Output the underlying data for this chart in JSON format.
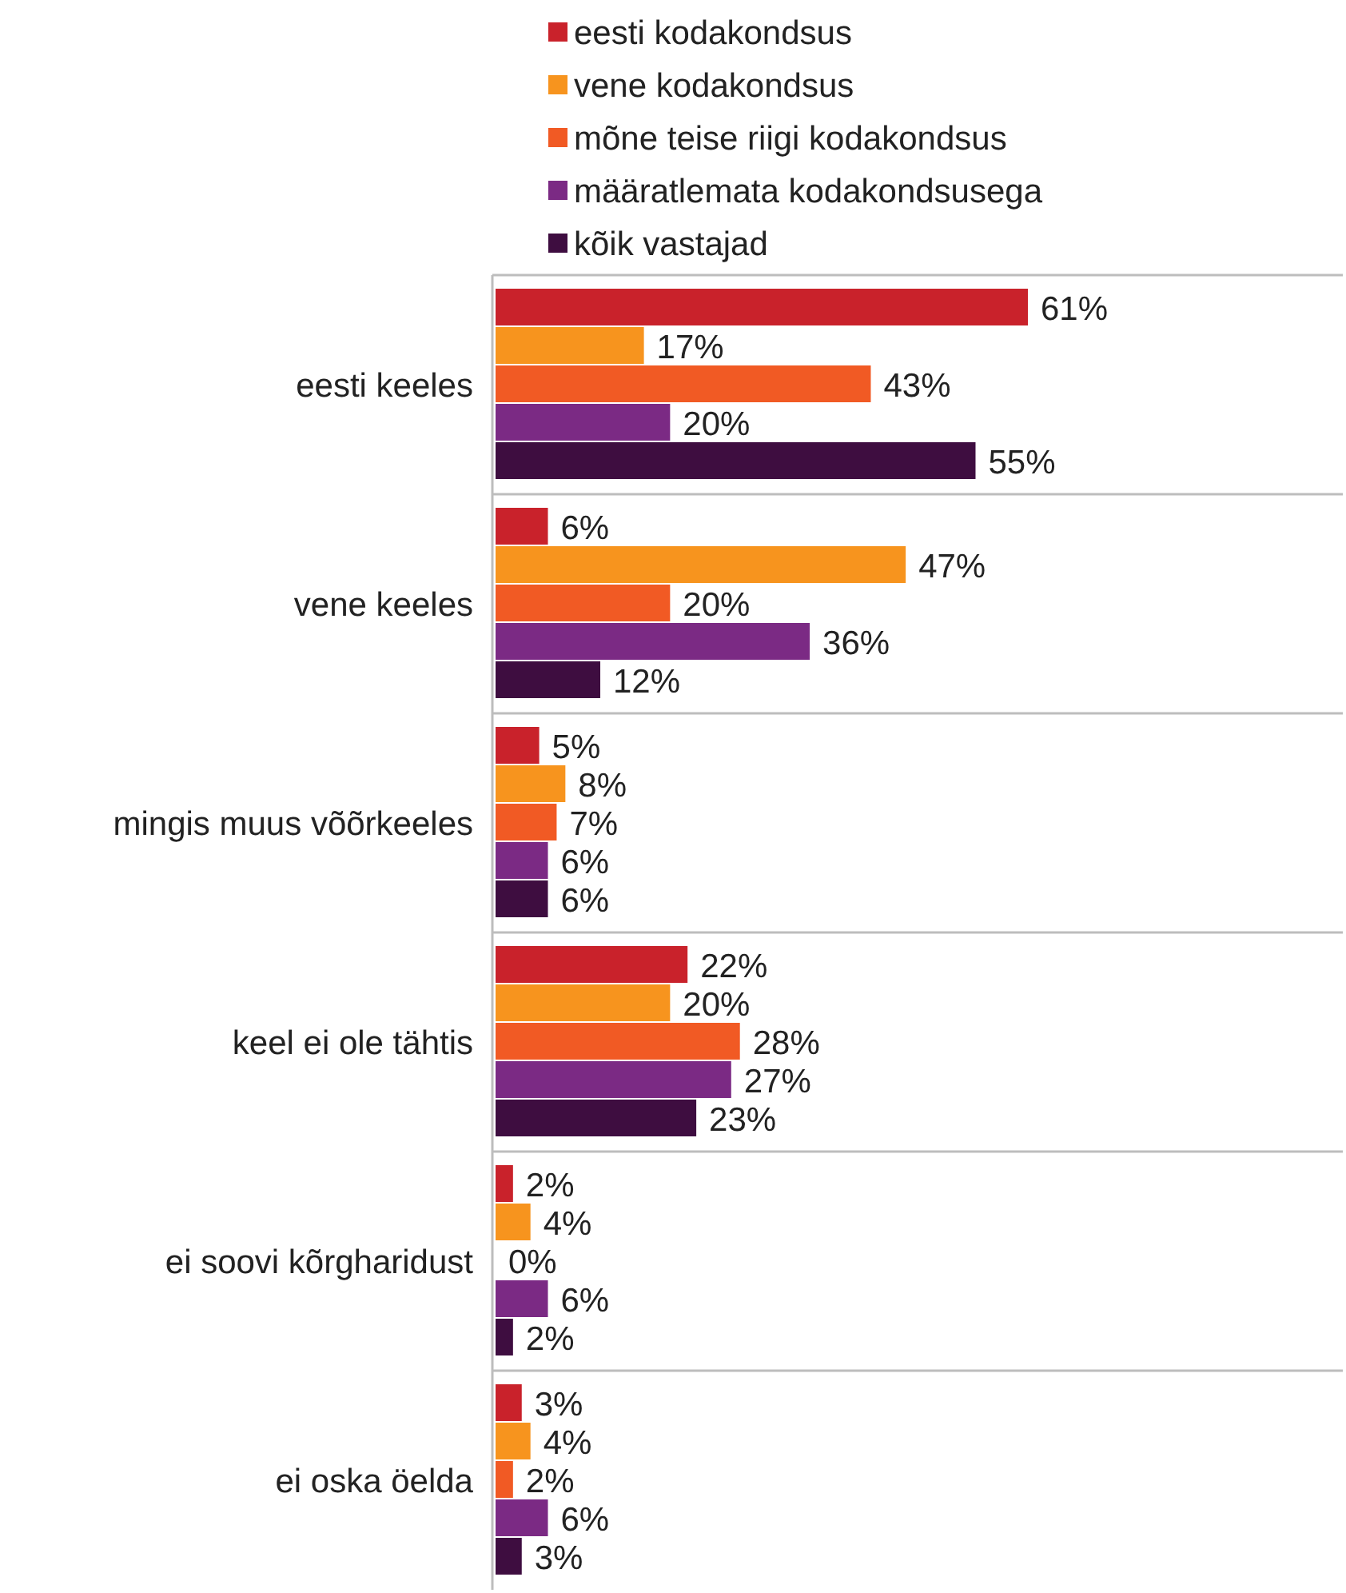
{
  "chart_data": {
    "type": "bar",
    "orientation": "horizontal",
    "grid": "y",
    "legend": "top",
    "categories": [
      "eesti keeles",
      "vene keeles",
      "mingis muus võõrkeeles",
      "keel ei ole tähtis",
      "ei soovi kõrgharidust",
      "ei oska öelda"
    ],
    "series": [
      {
        "name": "eesti kodakondsus",
        "color": "#c9222b",
        "values": [
          61,
          6,
          5,
          22,
          2,
          3
        ],
        "value_labels": [
          "61%",
          "6%",
          "5%",
          "22%",
          "2%",
          "3%"
        ]
      },
      {
        "name": "vene kodakondsus",
        "color": "#f7941e",
        "values": [
          17,
          47,
          8,
          20,
          4,
          4
        ],
        "value_labels": [
          "17%",
          "47%",
          "8%",
          "20%",
          "4%",
          "4%"
        ]
      },
      {
        "name": "mõne teise riigi kodakondsus",
        "color": "#f15a24",
        "values": [
          43,
          20,
          7,
          28,
          0,
          2
        ],
        "value_labels": [
          "43%",
          "20%",
          "7%",
          "28%",
          "0%",
          "2%"
        ]
      },
      {
        "name": "määratlemata kodakondsusega",
        "color": "#7b2a84",
        "values": [
          20,
          36,
          6,
          27,
          6,
          6
        ],
        "value_labels": [
          "20%",
          "36%",
          "6%",
          "27%",
          "6%",
          "6%"
        ]
      },
      {
        "name": "kõik vastajad",
        "color": "#3e0d40",
        "values": [
          55,
          12,
          6,
          23,
          2,
          3
        ],
        "value_labels": [
          "55%",
          "12%",
          "6%",
          "23%",
          "2%",
          "3%"
        ]
      }
    ]
  }
}
